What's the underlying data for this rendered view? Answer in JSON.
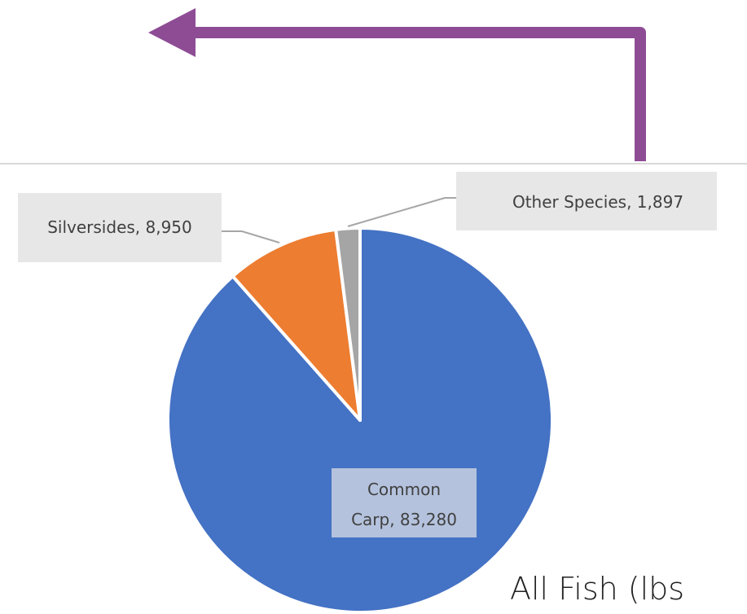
{
  "chart_data": {
    "type": "pie",
    "title": "All Fish (lbs",
    "categories": [
      "Common Carp",
      "Silversides",
      "Other Species"
    ],
    "values": [
      83280,
      8950,
      1897
    ],
    "data_labels": [
      "Common Carp, 83,280",
      "Silversides, 8,950",
      "Other Species, 1,897"
    ],
    "label_lines": {
      "Common Carp": [
        "Common",
        "Carp, 83,280"
      ],
      "Silversides": [
        "Silversides, 8,950"
      ],
      "Other Species": [
        "Other Species, 1,897"
      ]
    },
    "start_angle_deg": 0,
    "direction": "clockwise",
    "legend": "none"
  },
  "colors": {
    "Common Carp": "#4472c4",
    "Silversides": "#ed7d31",
    "Other Species": "#a5a5a5",
    "arrow": "#8e4c95",
    "carp_label_box": "#b4c2dd"
  }
}
